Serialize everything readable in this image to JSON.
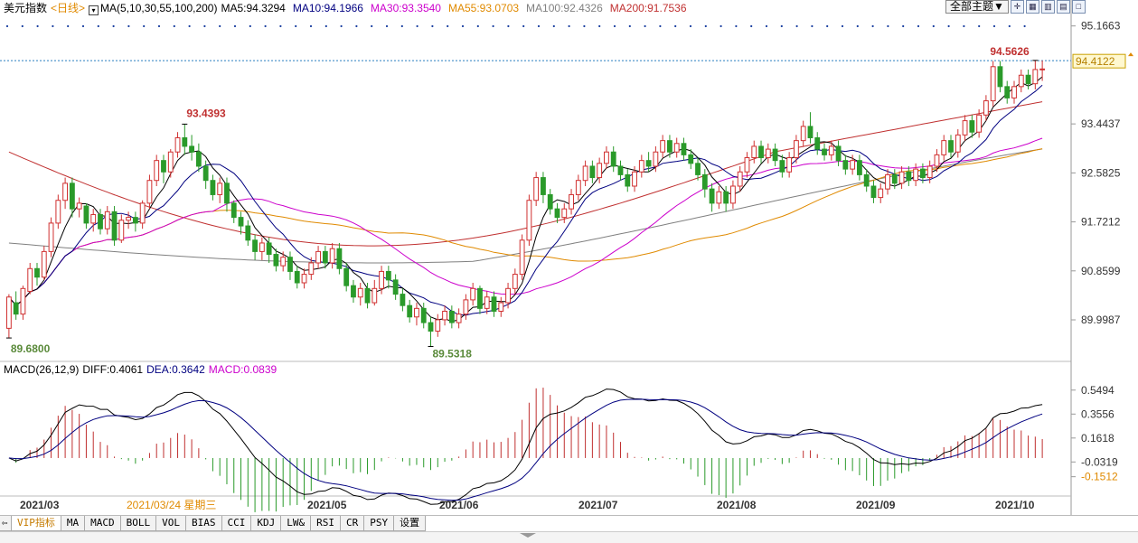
{
  "header": {
    "name": "美元指数",
    "period": "<日线>",
    "ma_label": "MA(5,10,30,55,100,200)",
    "ma_values": [
      {
        "label": "MA5:94.3294",
        "color": "#000000"
      },
      {
        "label": "MA10:94.1966",
        "color": "#000080"
      },
      {
        "label": "MA30:93.3540",
        "color": "#cc00cc"
      },
      {
        "label": "MA55:93.0703",
        "color": "#e08a00"
      },
      {
        "label": "MA100:92.4326",
        "color": "#808080"
      },
      {
        "label": "MA200:91.7536",
        "color": "#c03030"
      }
    ],
    "theme_button": "全部主题▼",
    "toolbar_icons": [
      "zoom-in-icon",
      "layout-grid-icon",
      "layout-columns-icon",
      "layout-rows-icon",
      "layout-single-icon"
    ]
  },
  "macd_header": {
    "label": "MACD(26,12,9)",
    "diff": "DIFF:0.4061",
    "dea": "DEA:0.3642",
    "macd": "MACD:0.0839",
    "colors": {
      "diff": "#000000",
      "dea": "#000080",
      "macd": "#cc00cc"
    }
  },
  "chart_data": {
    "type": "candlestick",
    "price_axis_ticks": [
      "95.1663",
      "93.4437",
      "92.5825",
      "91.7212",
      "90.8599",
      "89.9987"
    ],
    "current_price": "94.4122",
    "macd_axis_ticks": [
      "0.5494",
      "0.3556",
      "0.1618",
      "-0.0319",
      "-0.1512"
    ],
    "x_labels": [
      "2021/03",
      "2021/05",
      "2021/06",
      "2021/07",
      "2021/08",
      "2021/09",
      "2021/10"
    ],
    "cursor_date": "2021/03/24 星期三",
    "annotations": {
      "high1": "93.4393",
      "high2": "94.5626",
      "low1": "89.6800",
      "low2": "89.5318"
    },
    "ranges": {
      "price": [
        89.3,
        95.4
      ],
      "macd": [
        -0.3,
        0.65
      ]
    },
    "colors": {
      "up": "#d03030",
      "down": "#2a9a2a",
      "ma5": "#000000",
      "ma10": "#000080",
      "ma30": "#cc00cc",
      "ma55": "#e08a00",
      "ma100": "#808080",
      "ma200": "#c03030"
    },
    "candles": [
      [
        89.85,
        90.4,
        89.68,
        90.45
      ],
      [
        90.3,
        90.1,
        90.0,
        90.5
      ],
      [
        90.1,
        90.55,
        90.0,
        90.6
      ],
      [
        90.5,
        90.9,
        90.45,
        91.0
      ],
      [
        90.9,
        90.75,
        90.6,
        91.0
      ],
      [
        90.75,
        91.2,
        90.7,
        91.3
      ],
      [
        91.2,
        91.7,
        91.1,
        91.8
      ],
      [
        91.7,
        92.1,
        91.6,
        92.2
      ],
      [
        92.1,
        92.4,
        91.95,
        92.5
      ],
      [
        92.4,
        91.95,
        91.8,
        92.5
      ],
      [
        91.95,
        92.05,
        91.8,
        92.15
      ],
      [
        92.0,
        91.7,
        91.6,
        92.05
      ],
      [
        91.7,
        91.85,
        91.55,
        91.95
      ],
      [
        91.85,
        91.6,
        91.5,
        91.95
      ],
      [
        91.6,
        91.9,
        91.5,
        92.0
      ],
      [
        91.9,
        91.4,
        91.3,
        92.0
      ],
      [
        91.4,
        91.75,
        91.35,
        91.85
      ],
      [
        91.75,
        91.8,
        91.6,
        91.9
      ],
      [
        91.8,
        91.7,
        91.55,
        91.9
      ],
      [
        91.7,
        92.05,
        91.6,
        92.1
      ],
      [
        92.05,
        92.45,
        91.95,
        92.55
      ],
      [
        92.45,
        92.8,
        92.35,
        92.9
      ],
      [
        92.8,
        92.6,
        92.4,
        92.9
      ],
      [
        92.6,
        92.95,
        92.5,
        93.0
      ],
      [
        92.95,
        93.2,
        92.85,
        93.3
      ],
      [
        93.2,
        93.05,
        92.9,
        93.44
      ],
      [
        93.05,
        92.95,
        92.8,
        93.25
      ],
      [
        92.95,
        92.7,
        92.6,
        93.1
      ],
      [
        92.7,
        92.45,
        92.3,
        92.8
      ],
      [
        92.45,
        92.2,
        92.1,
        92.55
      ],
      [
        92.2,
        92.4,
        92.05,
        92.5
      ],
      [
        92.4,
        92.05,
        91.9,
        92.5
      ],
      [
        92.05,
        91.8,
        91.7,
        92.1
      ],
      [
        91.8,
        91.65,
        91.5,
        91.9
      ],
      [
        91.65,
        91.4,
        91.3,
        91.75
      ],
      [
        91.4,
        91.2,
        91.05,
        91.5
      ],
      [
        91.2,
        91.35,
        91.05,
        91.45
      ],
      [
        91.35,
        91.15,
        91.0,
        91.45
      ],
      [
        91.15,
        90.95,
        90.85,
        91.25
      ],
      [
        90.95,
        91.1,
        90.85,
        91.2
      ],
      [
        91.1,
        90.85,
        90.7,
        91.2
      ],
      [
        90.85,
        90.65,
        90.55,
        90.95
      ],
      [
        90.65,
        90.8,
        90.55,
        90.9
      ],
      [
        90.8,
        91.0,
        90.7,
        91.1
      ],
      [
        91.0,
        91.2,
        90.9,
        91.3
      ],
      [
        91.2,
        91.0,
        90.9,
        91.3
      ],
      [
        91.0,
        91.25,
        90.9,
        91.35
      ],
      [
        91.25,
        90.9,
        90.8,
        91.35
      ],
      [
        90.9,
        90.6,
        90.5,
        91.0
      ],
      [
        90.6,
        90.4,
        90.3,
        90.7
      ],
      [
        90.4,
        90.55,
        90.25,
        90.65
      ],
      [
        90.55,
        90.3,
        90.2,
        90.65
      ],
      [
        90.3,
        90.55,
        90.25,
        90.7
      ],
      [
        90.55,
        90.85,
        90.45,
        90.95
      ],
      [
        90.85,
        90.7,
        90.55,
        90.95
      ],
      [
        90.7,
        90.45,
        90.35,
        90.8
      ],
      [
        90.45,
        90.25,
        90.15,
        90.55
      ],
      [
        90.25,
        90.05,
        89.95,
        90.35
      ],
      [
        90.05,
        90.2,
        89.9,
        90.3
      ],
      [
        90.2,
        89.95,
        89.85,
        90.3
      ],
      [
        89.95,
        89.8,
        89.53,
        90.05
      ],
      [
        89.8,
        90.0,
        89.7,
        90.1
      ],
      [
        90.0,
        90.15,
        89.9,
        90.25
      ],
      [
        90.15,
        89.95,
        89.85,
        90.25
      ],
      [
        89.95,
        90.1,
        89.85,
        90.2
      ],
      [
        90.1,
        90.35,
        90.0,
        90.45
      ],
      [
        90.35,
        90.55,
        90.25,
        90.65
      ],
      [
        90.55,
        90.2,
        90.1,
        90.6
      ],
      [
        90.2,
        90.4,
        90.1,
        90.5
      ],
      [
        90.4,
        90.15,
        90.05,
        90.5
      ],
      [
        90.15,
        90.3,
        90.05,
        90.4
      ],
      [
        90.3,
        90.55,
        90.2,
        90.65
      ],
      [
        90.55,
        90.8,
        90.45,
        90.9
      ],
      [
        90.8,
        91.4,
        90.7,
        91.5
      ],
      [
        91.4,
        92.1,
        91.3,
        92.2
      ],
      [
        92.1,
        92.5,
        92.0,
        92.6
      ],
      [
        92.5,
        92.2,
        92.05,
        92.6
      ],
      [
        92.2,
        91.95,
        91.85,
        92.3
      ],
      [
        91.95,
        91.8,
        91.7,
        92.05
      ],
      [
        91.8,
        91.95,
        91.7,
        92.05
      ],
      [
        91.95,
        92.2,
        91.85,
        92.3
      ],
      [
        92.2,
        92.45,
        92.1,
        92.55
      ],
      [
        92.45,
        92.7,
        92.35,
        92.8
      ],
      [
        92.7,
        92.5,
        92.4,
        92.8
      ],
      [
        92.5,
        92.75,
        92.4,
        92.85
      ],
      [
        92.75,
        92.95,
        92.65,
        93.05
      ],
      [
        92.95,
        92.7,
        92.6,
        93.05
      ],
      [
        92.7,
        92.55,
        92.45,
        92.8
      ],
      [
        92.55,
        92.35,
        92.25,
        92.65
      ],
      [
        92.35,
        92.6,
        92.25,
        92.7
      ],
      [
        92.6,
        92.8,
        92.5,
        92.9
      ],
      [
        92.8,
        92.7,
        92.6,
        92.95
      ],
      [
        92.7,
        92.95,
        92.6,
        93.05
      ],
      [
        92.95,
        93.15,
        92.85,
        93.25
      ],
      [
        93.15,
        92.95,
        92.85,
        93.25
      ],
      [
        92.95,
        93.1,
        92.85,
        93.2
      ],
      [
        93.1,
        92.9,
        92.8,
        93.2
      ],
      [
        92.9,
        92.75,
        92.65,
        93.0
      ],
      [
        92.75,
        92.55,
        92.45,
        92.85
      ],
      [
        92.55,
        92.3,
        92.15,
        92.65
      ],
      [
        92.3,
        92.05,
        91.9,
        92.4
      ],
      [
        92.05,
        92.25,
        91.95,
        92.35
      ],
      [
        92.25,
        92.05,
        91.9,
        92.35
      ],
      [
        92.05,
        92.35,
        91.95,
        92.45
      ],
      [
        92.35,
        92.6,
        92.25,
        92.7
      ],
      [
        92.6,
        92.85,
        92.5,
        92.95
      ],
      [
        92.85,
        93.05,
        92.75,
        93.15
      ],
      [
        93.05,
        92.85,
        92.75,
        93.15
      ],
      [
        92.85,
        93.0,
        92.75,
        93.1
      ],
      [
        93.0,
        92.8,
        92.7,
        93.1
      ],
      [
        92.8,
        92.6,
        92.5,
        92.9
      ],
      [
        92.6,
        92.85,
        92.5,
        92.95
      ],
      [
        92.85,
        93.15,
        92.75,
        93.25
      ],
      [
        93.15,
        93.4,
        93.05,
        93.5
      ],
      [
        93.4,
        93.2,
        93.1,
        93.65
      ],
      [
        93.2,
        93.0,
        92.9,
        93.3
      ],
      [
        93.0,
        92.9,
        92.8,
        93.1
      ],
      [
        92.9,
        93.05,
        92.8,
        93.15
      ],
      [
        93.05,
        92.8,
        92.7,
        93.15
      ],
      [
        92.8,
        92.65,
        92.55,
        92.9
      ],
      [
        92.65,
        92.8,
        92.55,
        92.9
      ],
      [
        92.8,
        92.55,
        92.45,
        92.9
      ],
      [
        92.55,
        92.35,
        92.25,
        92.65
      ],
      [
        92.35,
        92.15,
        92.05,
        92.45
      ],
      [
        92.15,
        92.3,
        92.05,
        92.4
      ],
      [
        92.3,
        92.55,
        92.2,
        92.65
      ],
      [
        92.55,
        92.4,
        92.3,
        92.65
      ],
      [
        92.4,
        92.6,
        92.3,
        92.7
      ],
      [
        92.6,
        92.45,
        92.35,
        92.7
      ],
      [
        92.45,
        92.65,
        92.35,
        92.75
      ],
      [
        92.65,
        92.5,
        92.4,
        92.75
      ],
      [
        92.5,
        92.7,
        92.4,
        92.8
      ],
      [
        92.7,
        92.9,
        92.6,
        93.0
      ],
      [
        92.9,
        93.15,
        92.8,
        93.25
      ],
      [
        93.15,
        92.95,
        92.85,
        93.25
      ],
      [
        92.95,
        93.25,
        92.85,
        93.35
      ],
      [
        93.25,
        93.5,
        93.15,
        93.6
      ],
      [
        93.5,
        93.3,
        93.2,
        93.6
      ],
      [
        93.3,
        93.6,
        93.2,
        93.7
      ],
      [
        93.6,
        93.85,
        93.5,
        93.95
      ],
      [
        93.85,
        94.45,
        93.75,
        94.55
      ],
      [
        94.45,
        94.1,
        94.0,
        94.55
      ],
      [
        94.1,
        93.9,
        93.8,
        94.2
      ],
      [
        93.9,
        94.1,
        93.8,
        94.2
      ],
      [
        94.1,
        94.3,
        94.0,
        94.4
      ],
      [
        94.3,
        94.15,
        94.05,
        94.4
      ],
      [
        94.15,
        94.4,
        94.05,
        94.56
      ],
      [
        94.4,
        94.41,
        94.2,
        94.56
      ]
    ]
  },
  "tabs": [
    "VIP指标",
    "MA",
    "MACD",
    "BOLL",
    "VOL",
    "BIAS",
    "CCI",
    "KDJ",
    "LW&",
    "RSI",
    "CR",
    "PSY",
    "设置"
  ]
}
